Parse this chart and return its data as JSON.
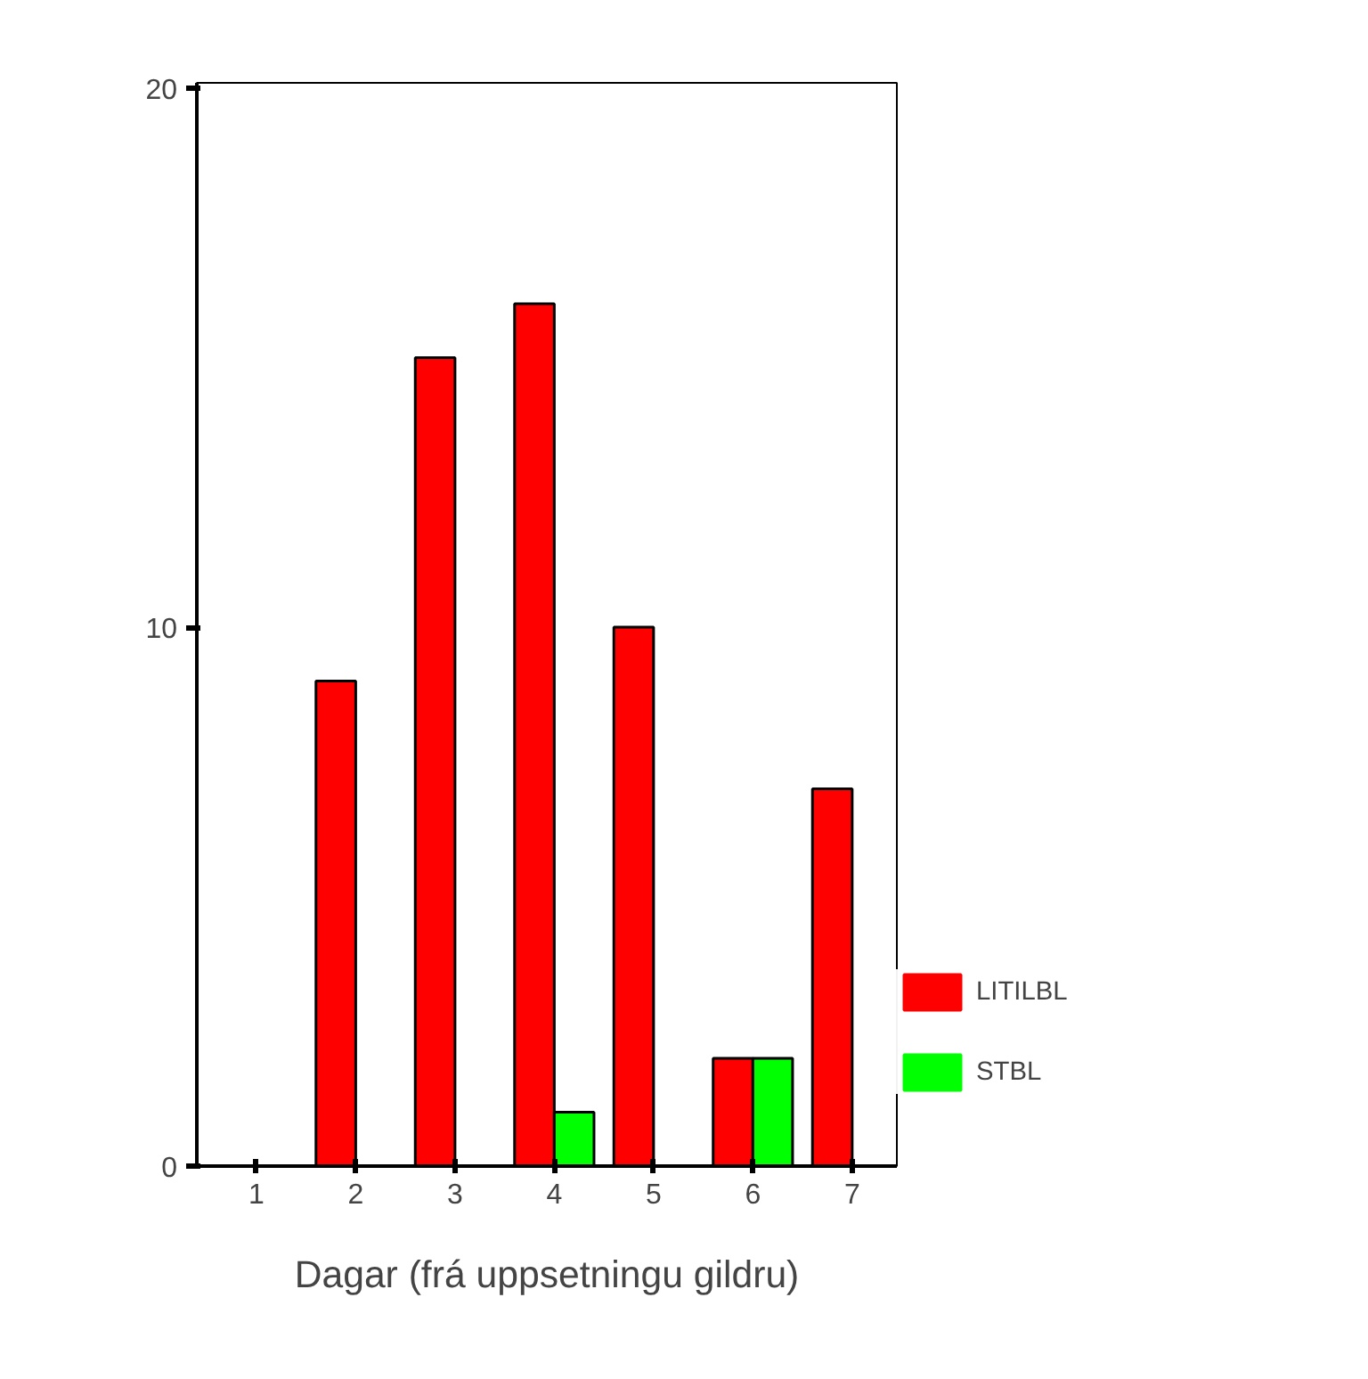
{
  "chart_data": {
    "type": "bar",
    "xlabel": "Dagar (frá uppsetningu gildru)",
    "categories": [
      "1",
      "2",
      "3",
      "4",
      "5",
      "6",
      "7"
    ],
    "series": [
      {
        "name": "LITILBL",
        "color": "#ff0000",
        "values": [
          0,
          9,
          15,
          16,
          10,
          2,
          7
        ]
      },
      {
        "name": "STBL",
        "color": "#00ff00",
        "values": [
          0,
          0,
          0,
          1,
          0,
          2,
          0
        ]
      }
    ],
    "ylim": [
      0,
      20.1
    ],
    "yticks": [
      0,
      10,
      20
    ],
    "grid": false,
    "legend": "right"
  }
}
